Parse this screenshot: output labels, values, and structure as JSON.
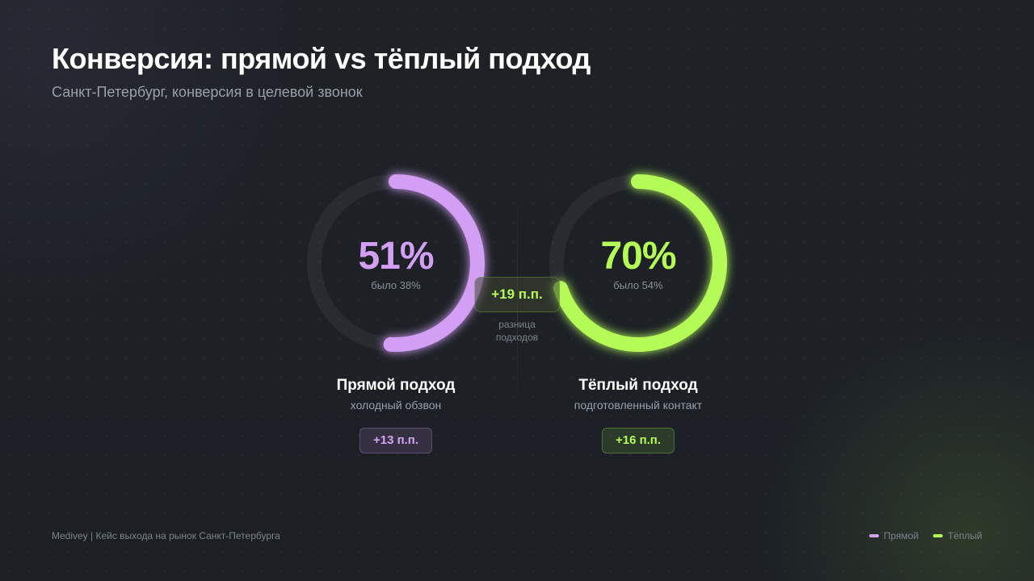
{
  "header": {
    "title": "Конверсия: прямой vs тёплый подход",
    "subtitle": "Санкт-Петербург, конверсия в целевой звонок"
  },
  "chart_data": {
    "type": "radial-progress",
    "title": "Конверсия: прямой vs тёплый подход",
    "subtitle": "Санкт-Петербург, конверсия в целевой звонок",
    "series": [
      {
        "name": "Прямой подход",
        "legend": "Прямой",
        "description": "холодный обзвон",
        "value": 51,
        "value_label": "51%",
        "previous": 38,
        "previous_label": "было 38%",
        "delta_label": "+13 п.п.",
        "color": "#d39ff5"
      },
      {
        "name": "Тёплый подход",
        "legend": "Тёплый",
        "description": "подготовленный контакт",
        "value": 70,
        "value_label": "70%",
        "previous": 54,
        "previous_label": "было 54%",
        "delta_label": "+16 п.п.",
        "color": "#b4fb58"
      }
    ],
    "difference": {
      "value_label": "+19 п.п.",
      "label_line1": "разница",
      "label_line2": "подходов"
    },
    "max": 100
  },
  "footer": {
    "text": "Medivey | Кейс выхода на рынок Санкт-Петербурга"
  }
}
